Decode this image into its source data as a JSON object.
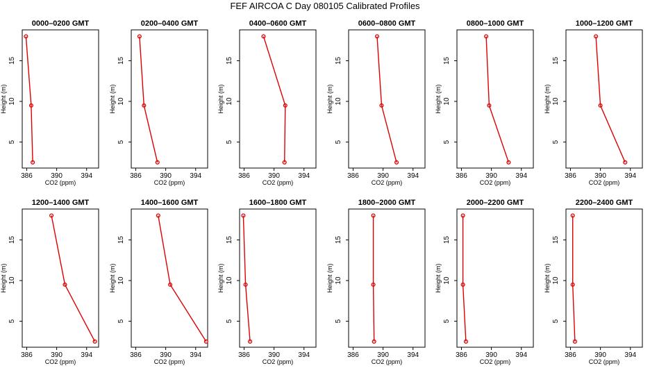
{
  "title": "FEF AIRCOA C  Day 080105  Calibrated Profiles",
  "colors": {
    "series": "#dd0000",
    "axis": "#000000"
  },
  "chart_data": [
    {
      "type": "line",
      "title": "0000–0200 GMT",
      "xlabel": "CO2 (ppm)",
      "ylabel": "Height (m)",
      "xticks": [
        386,
        390,
        394
      ],
      "yticks": [
        5,
        10,
        15
      ],
      "xlim": [
        385.4,
        395.6
      ],
      "ylim": [
        1.8,
        18.8
      ],
      "points": [
        {
          "x": 385.9,
          "y": 18
        },
        {
          "x": 386.6,
          "y": 9.5
        },
        {
          "x": 386.8,
          "y": 2.5
        }
      ]
    },
    {
      "type": "line",
      "title": "0200–0400 GMT",
      "xlabel": "CO2 (ppm)",
      "ylabel": "Height (m)",
      "xticks": [
        386,
        390,
        394
      ],
      "yticks": [
        5,
        10,
        15
      ],
      "xlim": [
        385.4,
        395.6
      ],
      "ylim": [
        1.8,
        18.8
      ],
      "points": [
        {
          "x": 386.5,
          "y": 18
        },
        {
          "x": 387.1,
          "y": 9.5
        },
        {
          "x": 388.9,
          "y": 2.5
        }
      ]
    },
    {
      "type": "line",
      "title": "0400–0600 GMT",
      "xlabel": "CO2 (ppm)",
      "ylabel": "Height (m)",
      "xticks": [
        386,
        390,
        394
      ],
      "yticks": [
        5,
        10,
        15
      ],
      "xlim": [
        385.4,
        395.6
      ],
      "ylim": [
        1.8,
        18.8
      ],
      "points": [
        {
          "x": 388.6,
          "y": 18
        },
        {
          "x": 391.5,
          "y": 9.5
        },
        {
          "x": 391.4,
          "y": 2.5
        }
      ]
    },
    {
      "type": "line",
      "title": "0600–0800 GMT",
      "xlabel": "CO2 (ppm)",
      "ylabel": "Height (m)",
      "xticks": [
        386,
        390,
        394
      ],
      "yticks": [
        5,
        10,
        15
      ],
      "xlim": [
        385.4,
        395.6
      ],
      "ylim": [
        1.8,
        18.8
      ],
      "points": [
        {
          "x": 389.2,
          "y": 18
        },
        {
          "x": 389.8,
          "y": 9.5
        },
        {
          "x": 391.8,
          "y": 2.5
        }
      ]
    },
    {
      "type": "line",
      "title": "0800–1000 GMT",
      "xlabel": "CO2 (ppm)",
      "ylabel": "Height (m)",
      "xticks": [
        386,
        390,
        394
      ],
      "yticks": [
        5,
        10,
        15
      ],
      "xlim": [
        385.4,
        395.6
      ],
      "ylim": [
        1.8,
        18.8
      ],
      "points": [
        {
          "x": 389.3,
          "y": 18
        },
        {
          "x": 389.7,
          "y": 9.5
        },
        {
          "x": 392.3,
          "y": 2.5
        }
      ]
    },
    {
      "type": "line",
      "title": "1000–1200 GMT",
      "xlabel": "CO2 (ppm)",
      "ylabel": "Height (m)",
      "xticks": [
        386,
        390,
        394
      ],
      "yticks": [
        5,
        10,
        15
      ],
      "xlim": [
        385.4,
        395.6
      ],
      "ylim": [
        1.8,
        18.8
      ],
      "points": [
        {
          "x": 389.4,
          "y": 18
        },
        {
          "x": 390.0,
          "y": 9.5
        },
        {
          "x": 393.3,
          "y": 2.5
        }
      ]
    },
    {
      "type": "line",
      "title": "1200–1400 GMT",
      "xlabel": "CO2 (ppm)",
      "ylabel": "Height (m)",
      "xticks": [
        386,
        390,
        394
      ],
      "yticks": [
        5,
        10,
        15
      ],
      "xlim": [
        385.4,
        395.6
      ],
      "ylim": [
        1.8,
        18.8
      ],
      "points": [
        {
          "x": 389.3,
          "y": 18
        },
        {
          "x": 391.1,
          "y": 9.5
        },
        {
          "x": 395.1,
          "y": 2.5
        }
      ]
    },
    {
      "type": "line",
      "title": "1400–1600 GMT",
      "xlabel": "CO2 (ppm)",
      "ylabel": "Height (m)",
      "xticks": [
        386,
        390,
        394
      ],
      "yticks": [
        5,
        10,
        15
      ],
      "xlim": [
        385.4,
        395.6
      ],
      "ylim": [
        1.8,
        18.8
      ],
      "points": [
        {
          "x": 389.0,
          "y": 18
        },
        {
          "x": 390.6,
          "y": 9.5
        },
        {
          "x": 395.4,
          "y": 2.5
        }
      ]
    },
    {
      "type": "line",
      "title": "1600–1800 GMT",
      "xlabel": "CO2 (ppm)",
      "ylabel": "Height (m)",
      "xticks": [
        386,
        390,
        394
      ],
      "yticks": [
        5,
        10,
        15
      ],
      "xlim": [
        385.4,
        395.6
      ],
      "ylim": [
        1.8,
        18.8
      ],
      "points": [
        {
          "x": 385.9,
          "y": 18
        },
        {
          "x": 386.2,
          "y": 9.5
        },
        {
          "x": 386.8,
          "y": 2.5
        }
      ]
    },
    {
      "type": "line",
      "title": "1800–2000 GMT",
      "xlabel": "CO2 (ppm)",
      "ylabel": "Height (m)",
      "xticks": [
        386,
        390,
        394
      ],
      "yticks": [
        5,
        10,
        15
      ],
      "xlim": [
        385.4,
        395.6
      ],
      "ylim": [
        1.8,
        18.8
      ],
      "points": [
        {
          "x": 388.7,
          "y": 18
        },
        {
          "x": 388.7,
          "y": 9.5
        },
        {
          "x": 388.8,
          "y": 2.5
        }
      ]
    },
    {
      "type": "line",
      "title": "2000–2200 GMT",
      "xlabel": "CO2 (ppm)",
      "ylabel": "Height (m)",
      "xticks": [
        386,
        390,
        394
      ],
      "yticks": [
        5,
        10,
        15
      ],
      "xlim": [
        385.4,
        395.6
      ],
      "ylim": [
        1.8,
        18.8
      ],
      "points": [
        {
          "x": 386.2,
          "y": 18
        },
        {
          "x": 386.2,
          "y": 9.5
        },
        {
          "x": 386.6,
          "y": 2.5
        }
      ]
    },
    {
      "type": "line",
      "title": "2200–2400 GMT",
      "xlabel": "CO2 (ppm)",
      "ylabel": "Height (m)",
      "xticks": [
        386,
        390,
        394
      ],
      "yticks": [
        5,
        10,
        15
      ],
      "xlim": [
        385.4,
        395.6
      ],
      "ylim": [
        1.8,
        18.8
      ],
      "points": [
        {
          "x": 386.3,
          "y": 18
        },
        {
          "x": 386.3,
          "y": 9.5
        },
        {
          "x": 386.6,
          "y": 2.5
        }
      ]
    }
  ]
}
